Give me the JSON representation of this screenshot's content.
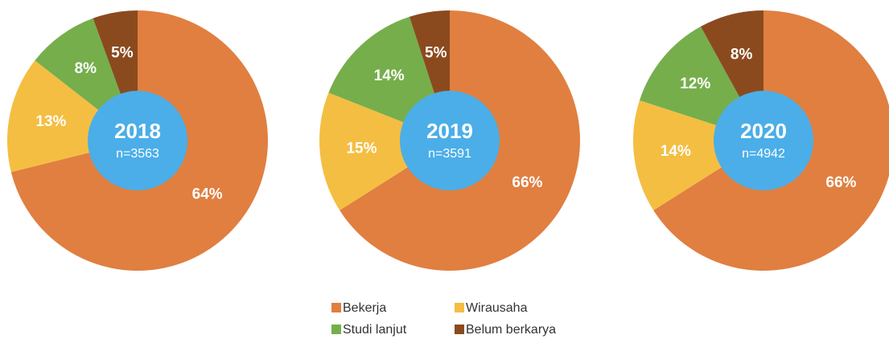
{
  "chart_data": [
    {
      "type": "pie",
      "title": "2018",
      "subtitle": "n=3563",
      "categories": [
        "Bekerja",
        "Wirausaha",
        "Studi lanjut",
        "Belum berkarya"
      ],
      "values": [
        64,
        13,
        8,
        5
      ],
      "value_labels": [
        "64%",
        "13%",
        "8%",
        "5%"
      ],
      "colors": [
        "#e07f40",
        "#f4be42",
        "#76ae4c",
        "#8b4a1e"
      ],
      "center_color": "#4baee8"
    },
    {
      "type": "pie",
      "title": "2019",
      "subtitle": "n=3591",
      "categories": [
        "Bekerja",
        "Wirausaha",
        "Studi lanjut",
        "Belum berkarya"
      ],
      "values": [
        66,
        15,
        14,
        5
      ],
      "value_labels": [
        "66%",
        "15%",
        "14%",
        "5%"
      ],
      "colors": [
        "#e07f40",
        "#f4be42",
        "#76ae4c",
        "#8b4a1e"
      ],
      "center_color": "#4baee8"
    },
    {
      "type": "pie",
      "title": "2020",
      "subtitle": "n=4942",
      "categories": [
        "Bekerja",
        "Wirausaha",
        "Studi lanjut",
        "Belum berkarya"
      ],
      "values": [
        66,
        14,
        12,
        8
      ],
      "value_labels": [
        "66%",
        "14%",
        "12%",
        "8%"
      ],
      "colors": [
        "#e07f40",
        "#f4be42",
        "#76ae4c",
        "#8b4a1e"
      ],
      "center_color": "#4baee8"
    }
  ]
}
